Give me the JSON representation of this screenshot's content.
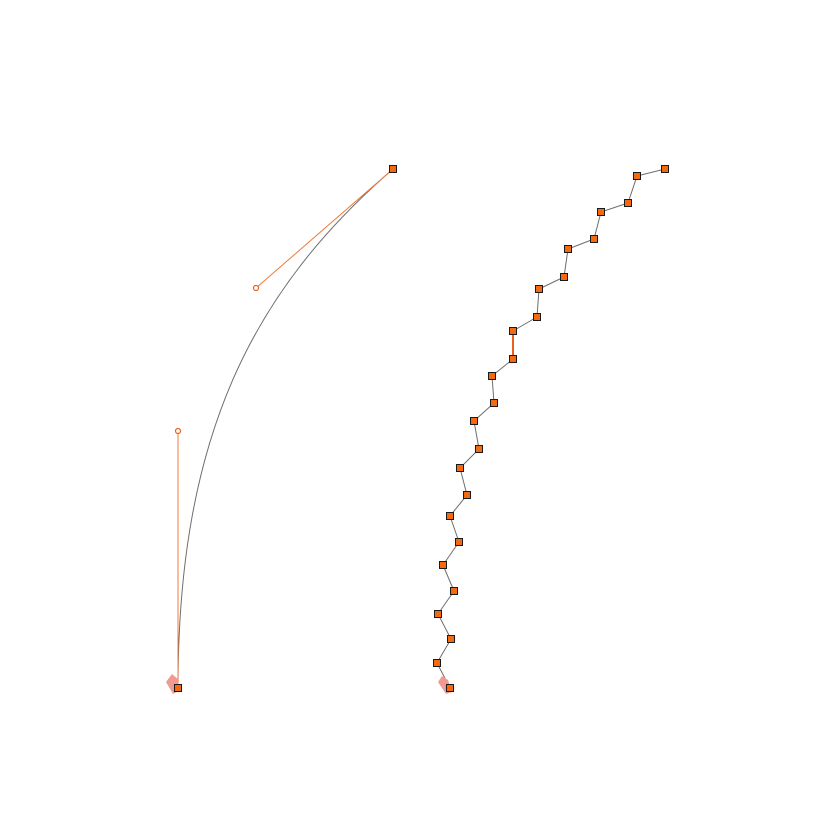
{
  "colors": {
    "path_stroke": "#6e6e6e",
    "handle": "#f07a3c",
    "node_fill": "#f36a14",
    "node_stroke": "#1a1a1a",
    "selected_segment": "#e8621e",
    "start_marker": "#f19a94",
    "background": "#ffffff"
  },
  "icons": {
    "node": "square-node-icon",
    "handle": "circle-handle-icon",
    "start": "path-start-arrow-icon"
  },
  "bezier_path": {
    "node_count": 2,
    "handle_count": 2,
    "selected": true
  },
  "polyline_path": {
    "node_count": 24,
    "selected_segment_index": 9
  }
}
